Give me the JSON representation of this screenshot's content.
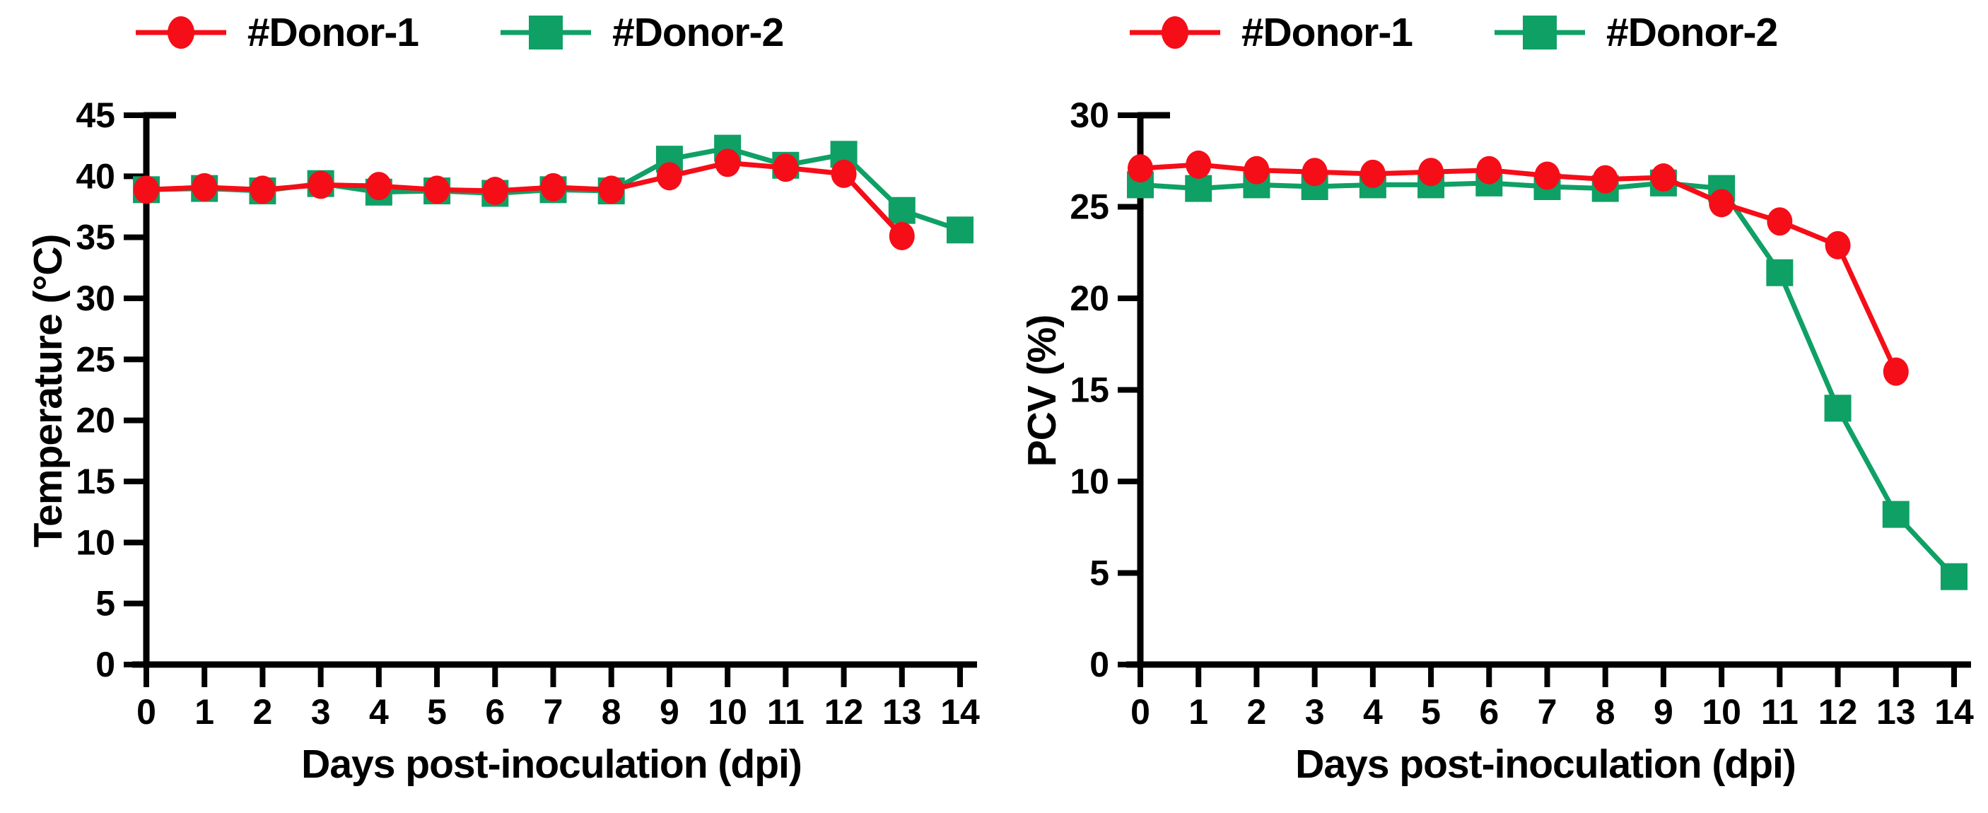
{
  "colors": {
    "donor1": "#f50d18",
    "donor2": "#0fa065",
    "axis": "#000000",
    "background": "#ffffff"
  },
  "legend": {
    "donor1_label": "#Donor-1",
    "donor2_label": "#Donor-2"
  },
  "chart_data": [
    {
      "type": "line",
      "panel": "temperature",
      "title": "",
      "xlabel": "Days post-inoculation (dpi)",
      "ylabel": "Temperature (°C)",
      "xlim": [
        0,
        14
      ],
      "ylim": [
        0,
        45
      ],
      "xticks": [
        0,
        1,
        2,
        3,
        4,
        5,
        6,
        7,
        8,
        9,
        10,
        11,
        12,
        13,
        14
      ],
      "yticks": [
        0,
        5,
        10,
        15,
        20,
        25,
        30,
        35,
        40,
        45
      ],
      "grid": false,
      "legend_position": "top",
      "series": [
        {
          "name": "#Donor-1",
          "color": "#f50d18",
          "marker": "circle",
          "x": [
            0,
            1,
            2,
            3,
            4,
            5,
            6,
            7,
            8,
            9,
            10,
            11,
            12,
            13
          ],
          "values": [
            38.9,
            39.1,
            38.9,
            39.3,
            39.2,
            38.9,
            38.8,
            39.1,
            38.9,
            40.0,
            41.1,
            40.7,
            40.2,
            35.1
          ]
        },
        {
          "name": "#Donor-2",
          "color": "#0fa065",
          "marker": "square",
          "x": [
            0,
            1,
            2,
            3,
            4,
            5,
            6,
            7,
            8,
            9,
            10,
            11,
            12,
            13,
            14
          ],
          "values": [
            38.9,
            39.0,
            38.8,
            39.4,
            38.7,
            38.8,
            38.6,
            38.9,
            38.8,
            41.4,
            42.3,
            40.9,
            41.8,
            37.2,
            35.6
          ]
        }
      ]
    },
    {
      "type": "line",
      "panel": "pcv",
      "title": "",
      "xlabel": "Days post-inoculation (dpi)",
      "ylabel": "PCV (%)",
      "xlim": [
        0,
        14
      ],
      "ylim": [
        0,
        30
      ],
      "xticks": [
        0,
        1,
        2,
        3,
        4,
        5,
        6,
        7,
        8,
        9,
        10,
        11,
        12,
        13,
        14
      ],
      "yticks": [
        0,
        5,
        10,
        15,
        20,
        25,
        30
      ],
      "grid": false,
      "legend_position": "top",
      "series": [
        {
          "name": "#Donor-1",
          "color": "#f50d18",
          "marker": "circle",
          "x": [
            0,
            1,
            2,
            3,
            4,
            5,
            6,
            7,
            8,
            9,
            10,
            11,
            12,
            13
          ],
          "values": [
            27.1,
            27.3,
            27.0,
            26.9,
            26.8,
            26.9,
            27.0,
            26.7,
            26.5,
            26.6,
            25.2,
            24.2,
            22.9,
            16.0
          ]
        },
        {
          "name": "#Donor-2",
          "color": "#0fa065",
          "marker": "square",
          "x": [
            0,
            1,
            2,
            3,
            4,
            5,
            6,
            7,
            8,
            9,
            10,
            11,
            12,
            13,
            14
          ],
          "values": [
            26.2,
            26.0,
            26.2,
            26.1,
            26.2,
            26.2,
            26.3,
            26.1,
            26.0,
            26.3,
            26.0,
            21.4,
            14.0,
            8.2,
            4.8
          ]
        }
      ]
    }
  ]
}
